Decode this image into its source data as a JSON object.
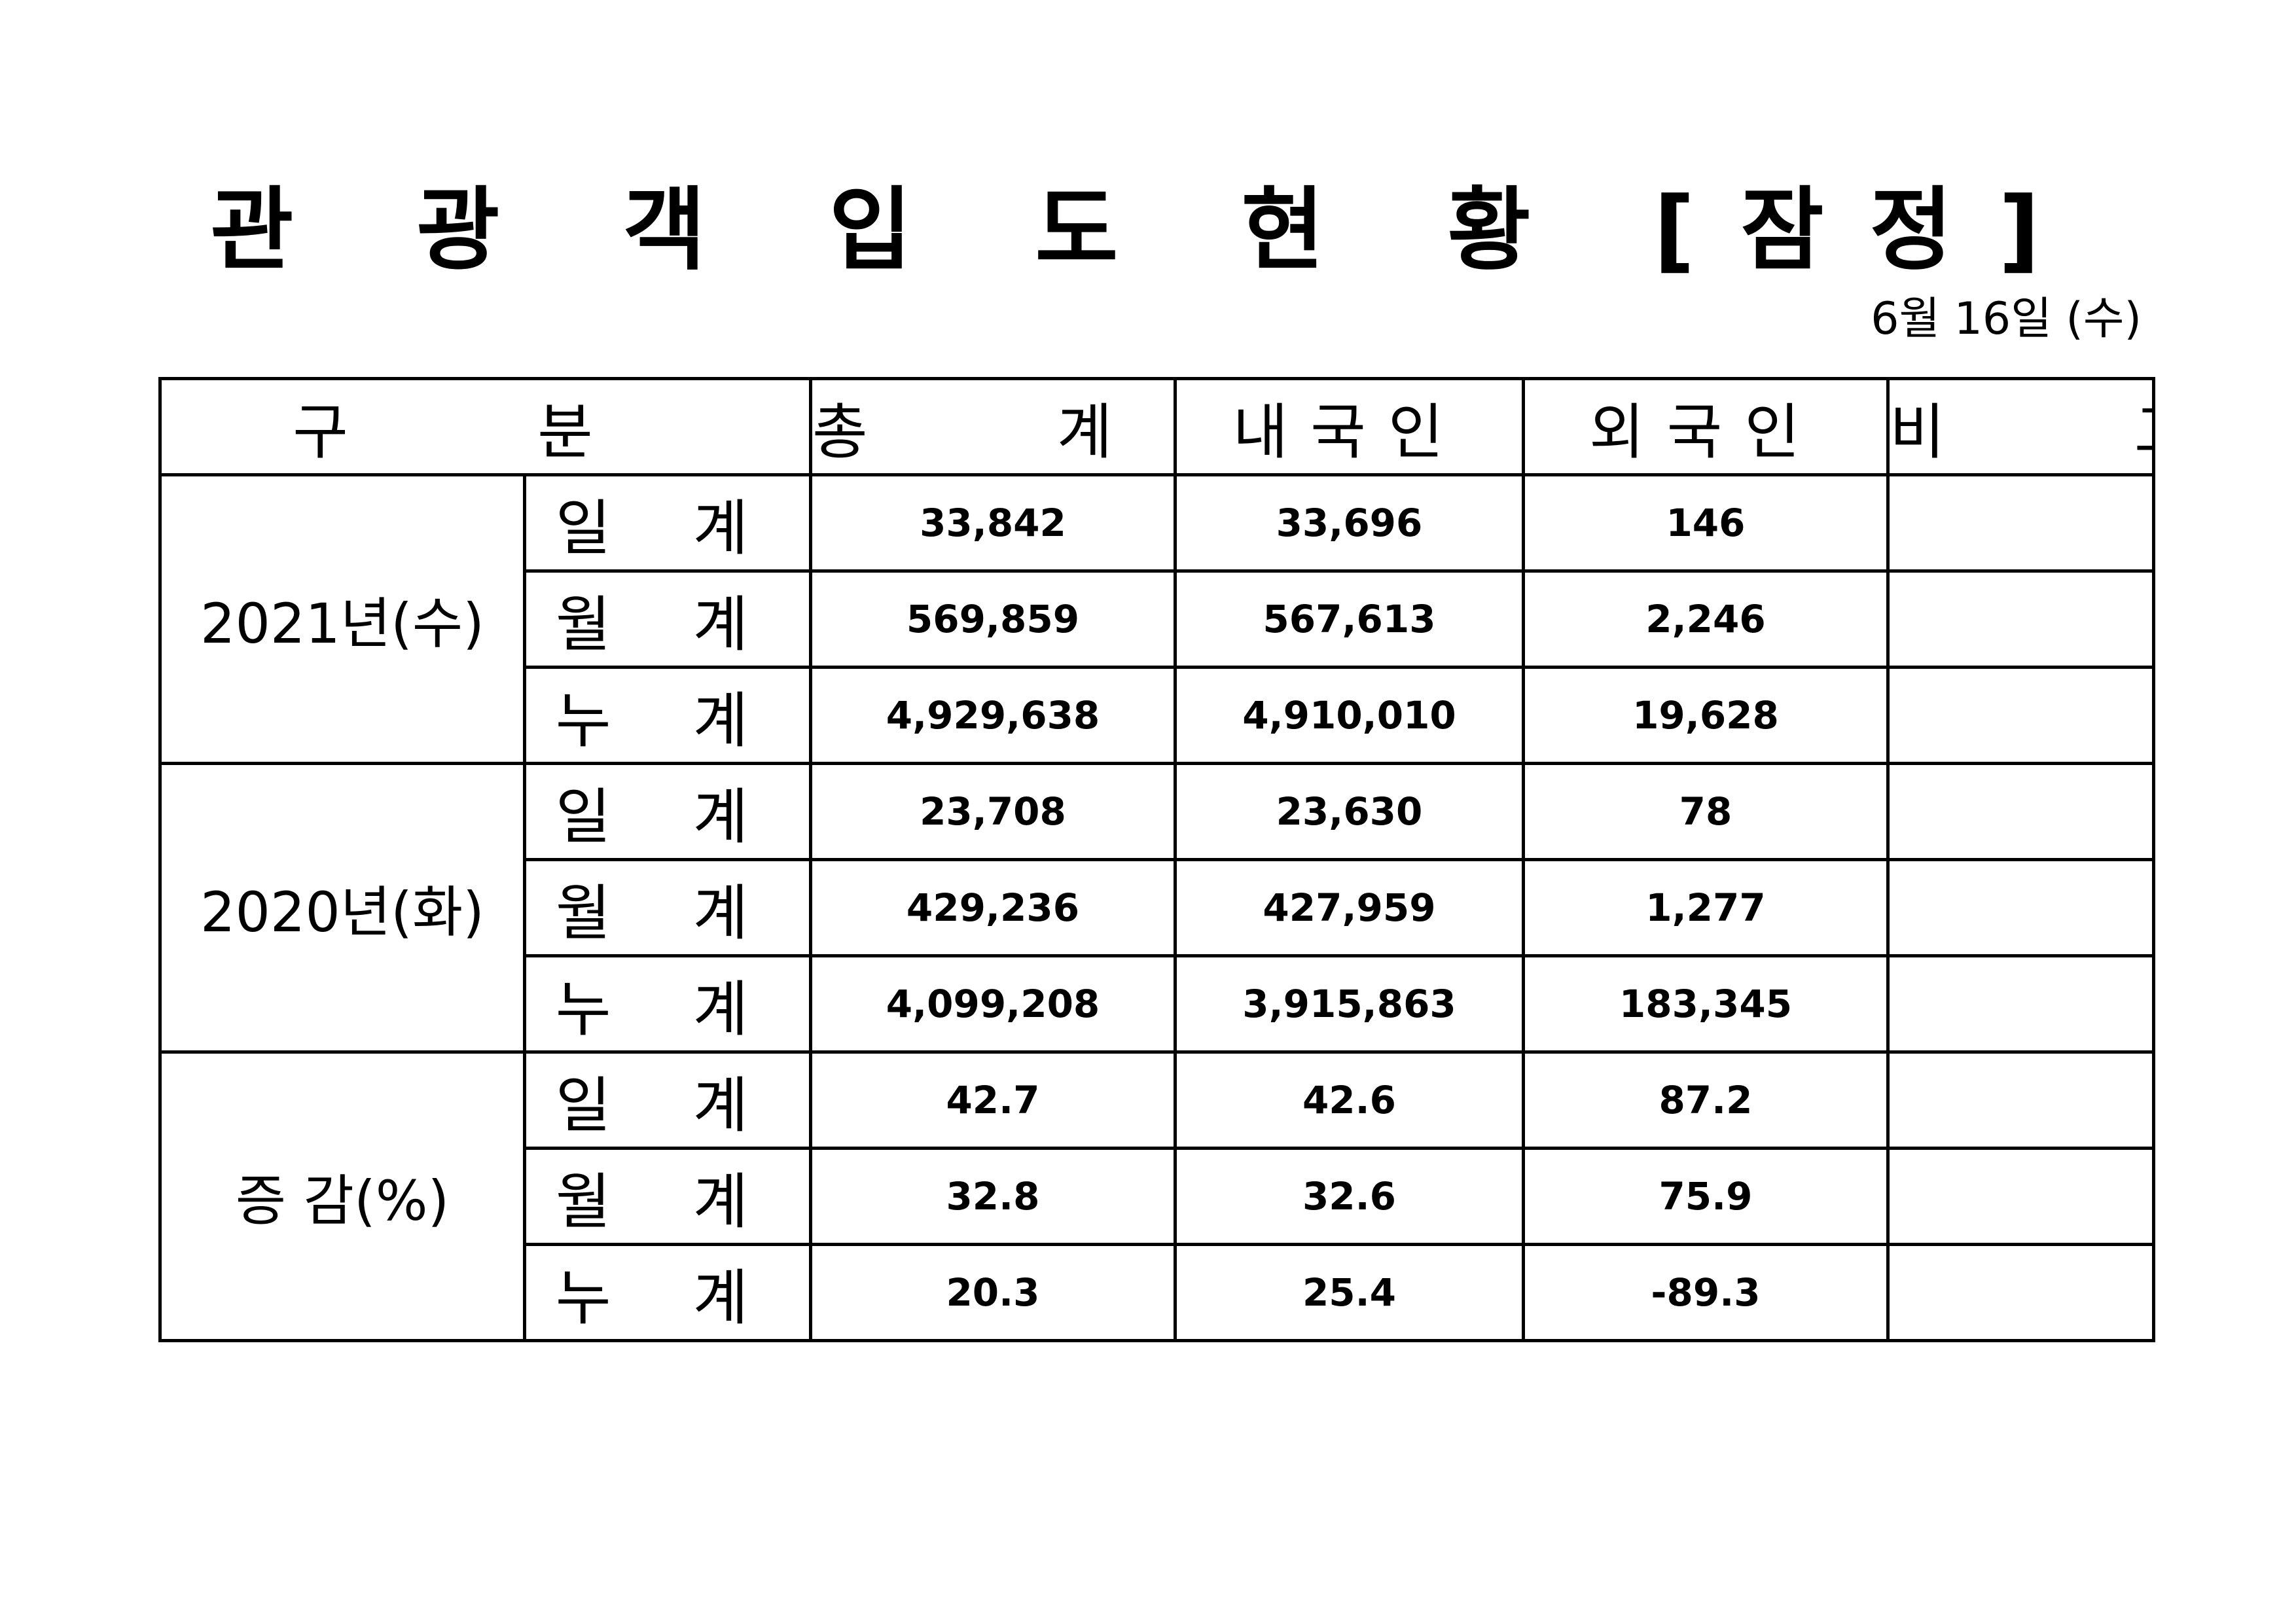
{
  "title": "관 광 객 입 도 현 황 [잠정]",
  "date": "6월 16일 (수)",
  "table": {
    "headers": {
      "category": "구 분",
      "total": "총 계",
      "domestic": "내국인",
      "foreign": "외국인",
      "note": "비 고"
    },
    "groups": [
      {
        "label": "2021년(수)",
        "rows": [
          {
            "label": "일 계",
            "total": "33,842",
            "domestic": "33,696",
            "foreign": "146",
            "note": ""
          },
          {
            "label": "월 계",
            "total": "569,859",
            "domestic": "567,613",
            "foreign": "2,246",
            "note": ""
          },
          {
            "label": "누 계",
            "total": "4,929,638",
            "domestic": "4,910,010",
            "foreign": "19,628",
            "note": ""
          }
        ]
      },
      {
        "label": "2020년(화)",
        "rows": [
          {
            "label": "일 계",
            "total": "23,708",
            "domestic": "23,630",
            "foreign": "78",
            "note": ""
          },
          {
            "label": "월 계",
            "total": "429,236",
            "domestic": "427,959",
            "foreign": "1,277",
            "note": ""
          },
          {
            "label": "누 계",
            "total": "4,099,208",
            "domestic": "3,915,863",
            "foreign": "183,345",
            "note": ""
          }
        ]
      },
      {
        "label": "증 감(%)",
        "rows": [
          {
            "label": "일 계",
            "total": "42.7",
            "domestic": "42.6",
            "foreign": "87.2",
            "note": ""
          },
          {
            "label": "월 계",
            "total": "32.8",
            "domestic": "32.6",
            "foreign": "75.9",
            "note": ""
          },
          {
            "label": "누 계",
            "total": "20.3",
            "domestic": "25.4",
            "foreign": "-89.3",
            "note": ""
          }
        ]
      }
    ]
  }
}
